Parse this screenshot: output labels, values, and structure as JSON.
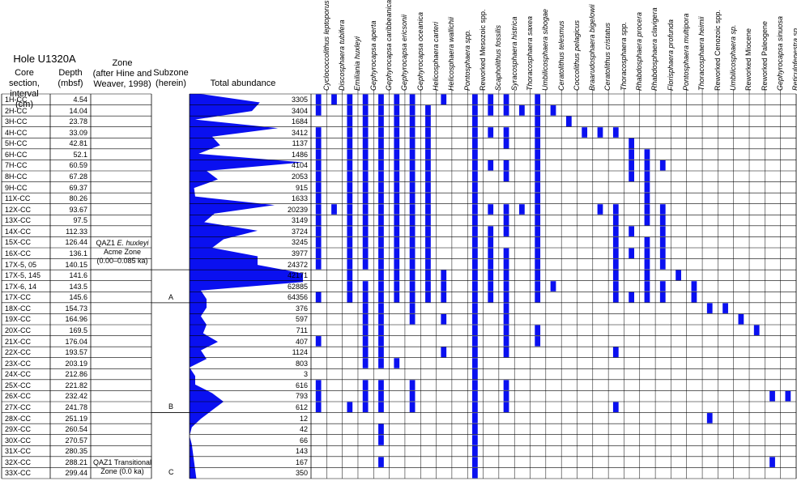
{
  "header": {
    "hole": "Hole U1320A",
    "core_section": "Core section,\ninterval (cm)",
    "depth": "Depth\n(mbsf)",
    "zone": "Zone\n(after Hine and\nWeaver, 1998)",
    "subzone": "Subzone\n(herein)",
    "total_abundance": "Total abundance"
  },
  "zones": {
    "upper_line1": "QAZ1",
    "upper_italic": "E. huxleyi",
    "upper_line2": "Acme Zone",
    "upper_line3": "(0.00–0.085 ka)",
    "lower_line1": "QAZ1 Transitional",
    "lower_line2": "Zone (0.0 ka)"
  },
  "subzones": [
    "A",
    "B",
    "C"
  ],
  "chart_data": {
    "type": "table",
    "samples": [
      {
        "section": "1H-CC",
        "depth": "4.54",
        "abundance": 3305
      },
      {
        "section": "2H-CC",
        "depth": "14.04",
        "abundance": 3404
      },
      {
        "section": "3H-CC",
        "depth": "23.78",
        "abundance": 1684
      },
      {
        "section": "4H-CC",
        "depth": "33.09",
        "abundance": 3412
      },
      {
        "section": "5H-CC",
        "depth": "42.81",
        "abundance": 1137
      },
      {
        "section": "6H-CC",
        "depth": "52.1",
        "abundance": 1486
      },
      {
        "section": "7H-CC",
        "depth": "60.59",
        "abundance": 4104
      },
      {
        "section": "8H-CC",
        "depth": "67.28",
        "abundance": 2053
      },
      {
        "section": "9H-CC",
        "depth": "69.37",
        "abundance": 915
      },
      {
        "section": "11X-CC",
        "depth": "80.26",
        "abundance": 1633
      },
      {
        "section": "12X-CC",
        "depth": "93.67",
        "abundance": 20239
      },
      {
        "section": "13X-CC",
        "depth": "97.5",
        "abundance": 3149
      },
      {
        "section": "14X-CC",
        "depth": "112.33",
        "abundance": 3724
      },
      {
        "section": "15X-CC",
        "depth": "126.44",
        "abundance": 3245
      },
      {
        "section": "16X-CC",
        "depth": "136.1",
        "abundance": 3977
      },
      {
        "section": "17X-5, 05",
        "depth": "140.15",
        "abundance": 24372
      },
      {
        "section": "17X-5, 145",
        "depth": "141.6",
        "abundance": 42171
      },
      {
        "section": "17X-6, 14",
        "depth": "143.5",
        "abundance": 62885
      },
      {
        "section": "17X-CC",
        "depth": "145.6",
        "abundance": 64356
      },
      {
        "section": "18X-CC",
        "depth": "154.73",
        "abundance": 376
      },
      {
        "section": "19X-CC",
        "depth": "164.96",
        "abundance": 597
      },
      {
        "section": "20X-CC",
        "depth": "169.5",
        "abundance": 711
      },
      {
        "section": "21X-CC",
        "depth": "176.04",
        "abundance": 407
      },
      {
        "section": "22X-CC",
        "depth": "193.57",
        "abundance": 1124
      },
      {
        "section": "23X-CC",
        "depth": "203.19",
        "abundance": 803
      },
      {
        "section": "24X-CC",
        "depth": "212.86",
        "abundance": 3
      },
      {
        "section": "25X-CC",
        "depth": "221.82",
        "abundance": 616
      },
      {
        "section": "26X-CC",
        "depth": "232.42",
        "abundance": 793
      },
      {
        "section": "27X-CC",
        "depth": "241.78",
        "abundance": 612
      },
      {
        "section": "28X-CC",
        "depth": "251.19",
        "abundance": 12
      },
      {
        "section": "29X-CC",
        "depth": "260.54",
        "abundance": 42
      },
      {
        "section": "30X-CC",
        "depth": "270.57",
        "abundance": 66
      },
      {
        "section": "31X-CC",
        "depth": "280.35",
        "abundance": 143
      },
      {
        "section": "32X-CC",
        "depth": "288.21",
        "abundance": 167
      },
      {
        "section": "33X-CC",
        "depth": "299.44",
        "abundance": 350
      }
    ],
    "profile_shape": [
      0.1,
      0.62,
      0.55,
      0.05,
      0.78,
      0.2,
      0.27,
      0.08,
      1.0,
      0.15,
      0.25,
      0.04,
      0.05,
      0.75,
      0.22,
      0.13,
      0.6,
      0.3,
      0.2,
      0.6,
      0.6,
      1.0,
      1.0,
      0.1,
      0.15,
      0.15,
      0.1,
      0.15,
      0.12,
      0.25,
      0.1,
      0.15,
      0.0,
      0.05,
      0.05,
      0.2,
      0.3,
      0.2,
      0.1,
      0.02,
      0.0,
      0.02,
      0.03,
      0.04,
      0.05,
      0.06
    ],
    "species": [
      "Cyclococcolithus leptoporus",
      "Discosphaera tubifera",
      "Emiliania huxleyi",
      "Gephyrocapsa aperta",
      "Gephyrocapsa caribbeanica",
      "Gephyrocapsa ericsonii",
      "Gephyrocapsa oceanica",
      "Helicosphaera carteri",
      "Helicosphaera wallichii",
      "Pontosphaera spp.",
      "Reworked Mesozoic spp.",
      "Scapholithus fossilis",
      "Syracosphaera histrica",
      "Thoracosphaera saxea",
      "Umbilicosphaera sibogae",
      "Ceratolithus telesmus",
      "Coccolithus pelagicus",
      "Braarudosphaera bigelowii",
      "Ceratolithus cristatus",
      "Thoracosphaera spp.",
      "Rhabdosphaera procera",
      "Rhabdosphaera clavigera",
      "Florisphaera profunda",
      "Pontosphaera multipora",
      "Thoracosphaera heimii",
      "Reworked Cenozoic spp.",
      "Umbilicosphaera sp.",
      "Reworked Miocene",
      "Reworked Paleogene",
      "Gephyrocapsa sinuosa",
      "Reticulofenestra sp."
    ],
    "species_italic": [
      true,
      true,
      true,
      true,
      true,
      true,
      true,
      true,
      true,
      true,
      false,
      true,
      true,
      true,
      true,
      true,
      true,
      true,
      true,
      true,
      true,
      true,
      true,
      true,
      true,
      false,
      true,
      false,
      false,
      true,
      true
    ],
    "presence": [
      [
        0,
        1,
        2,
        3,
        4,
        5,
        6,
        8,
        10,
        11,
        12,
        14
      ],
      [
        0,
        2,
        3,
        4,
        5,
        6,
        7,
        10,
        11,
        12,
        13,
        14,
        15
      ],
      [
        2,
        3,
        4,
        5,
        6,
        7,
        10,
        14,
        16
      ],
      [
        0,
        2,
        3,
        4,
        5,
        6,
        7,
        10,
        11,
        12,
        14,
        17,
        18,
        19
      ],
      [
        0,
        2,
        3,
        4,
        5,
        6,
        7,
        10,
        12,
        14,
        20
      ],
      [
        0,
        2,
        3,
        4,
        5,
        6,
        7,
        10,
        14,
        20,
        21
      ],
      [
        0,
        2,
        3,
        4,
        5,
        6,
        7,
        10,
        11,
        12,
        14,
        20,
        21,
        22
      ],
      [
        0,
        2,
        3,
        4,
        5,
        6,
        7,
        10,
        12,
        14,
        20,
        21
      ],
      [
        0,
        2,
        3,
        4,
        5,
        6,
        7,
        10,
        14,
        21
      ],
      [
        0,
        2,
        3,
        4,
        5,
        6,
        7,
        10,
        14,
        21
      ],
      [
        0,
        1,
        2,
        3,
        4,
        5,
        6,
        7,
        10,
        11,
        12,
        13,
        14,
        18,
        19,
        21,
        22
      ],
      [
        0,
        2,
        3,
        4,
        5,
        6,
        7,
        10,
        12,
        14,
        19,
        21,
        22
      ],
      [
        0,
        2,
        3,
        4,
        5,
        6,
        7,
        10,
        11,
        12,
        14,
        19,
        20,
        22
      ],
      [
        0,
        2,
        3,
        4,
        5,
        6,
        7,
        10,
        11,
        14,
        19,
        21,
        22
      ],
      [
        0,
        2,
        3,
        4,
        5,
        6,
        7,
        10,
        11,
        12,
        14,
        19,
        20,
        21,
        22
      ],
      [
        0,
        2,
        3,
        4,
        5,
        6,
        7,
        10,
        11,
        12,
        14,
        19,
        21,
        22
      ],
      [
        2,
        4,
        5,
        6,
        7,
        8,
        10,
        11,
        12,
        14,
        19,
        21,
        23
      ],
      [
        2,
        3,
        4,
        5,
        6,
        7,
        8,
        10,
        11,
        12,
        14,
        15,
        19,
        21,
        22,
        24
      ],
      [
        0,
        2,
        3,
        4,
        5,
        6,
        7,
        8,
        10,
        11,
        12,
        14,
        19,
        20,
        21,
        22,
        24
      ],
      [
        3,
        4,
        6,
        10,
        12,
        25,
        26
      ],
      [
        3,
        4,
        6,
        8,
        10,
        12,
        27
      ],
      [
        3,
        4,
        10,
        12,
        14,
        28
      ],
      [
        0,
        3,
        4,
        10,
        12,
        14
      ],
      [
        3,
        4,
        8,
        10,
        12,
        19
      ],
      [
        3,
        4,
        5,
        10
      ],
      [
        10
      ],
      [
        0,
        3,
        4,
        6,
        10,
        12
      ],
      [
        0,
        3,
        4,
        6,
        10,
        12,
        29,
        30
      ],
      [
        0,
        2,
        3,
        4,
        6,
        10,
        12,
        19
      ],
      [
        10,
        25
      ],
      [
        4,
        10
      ],
      [
        4,
        10
      ],
      [
        10
      ],
      [
        4,
        10,
        29
      ],
      [
        10
      ]
    ]
  },
  "colors": {
    "fill": "#0a10f0",
    "line": "#000000"
  }
}
